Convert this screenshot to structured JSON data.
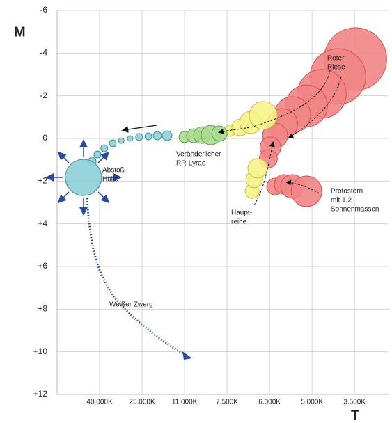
{
  "chart_data": {
    "type": "bubble",
    "y_label": "M",
    "x_label": "T",
    "xlim": [
      0,
      7.8
    ],
    "ylim": [
      -6,
      12
    ],
    "y_inverted": true,
    "grid": true,
    "xticks": [
      {
        "value": 1,
        "label": "40.000K"
      },
      {
        "value": 2,
        "label": "25.000K"
      },
      {
        "value": 3,
        "label": "11.000K"
      },
      {
        "value": 4,
        "label": "7.500K"
      },
      {
        "value": 5,
        "label": "6.000K"
      },
      {
        "value": 6,
        "label": "5.000K"
      },
      {
        "value": 7,
        "label": "3.500K"
      }
    ],
    "yticks": [
      -6,
      -4,
      -2,
      0,
      {
        "value": 2,
        "label": "+2"
      },
      {
        "value": 4,
        "label": "+4"
      },
      {
        "value": 6,
        "label": "+6"
      },
      {
        "value": 8,
        "label": "+8"
      },
      {
        "value": 10,
        "label": "+10"
      },
      {
        "value": 12,
        "label": "+12"
      }
    ],
    "series": [
      {
        "color": "#f08585",
        "stroke": "#d85050",
        "x": [
          7.02,
          6.61,
          6.23,
          5.87,
          5.54,
          5.3,
          5.13,
          5.02,
          4.97,
          5.13,
          5.34,
          5.54,
          5.87
        ],
        "y": [
          -3.72,
          -2.9,
          -2.09,
          -1.53,
          -1.11,
          -0.68,
          -0.13,
          0.42,
          0.95,
          2.25,
          2.15,
          2.25,
          2.48
        ],
        "sizes": [
          45,
          40,
          35,
          30,
          26,
          22,
          18,
          15,
          13,
          12,
          14,
          17,
          22
        ]
      },
      {
        "color": "#f5f38a",
        "stroke": "#c8c040",
        "x": [
          4.59,
          4.64,
          4.72,
          4.07,
          4.31,
          4.56,
          4.85
        ],
        "y": [
          2.48,
          1.92,
          1.4,
          -0.36,
          -0.52,
          -0.75,
          -1.08
        ],
        "sizes": [
          10,
          12,
          14,
          8,
          12,
          16,
          20
        ]
      },
      {
        "color": "#a9dc8c",
        "stroke": "#5aa050",
        "x": [
          3.0,
          3.21,
          3.41,
          3.62,
          3.82
        ],
        "y": [
          -0.07,
          -0.13,
          -0.16,
          -0.16,
          -0.23
        ],
        "sizes": [
          8,
          10,
          12,
          14,
          11
        ]
      },
      {
        "color": "#8ccfd8",
        "stroke": "#3f8fa0",
        "x": [
          2.59,
          2.36,
          2.15,
          1.93,
          1.72,
          1.51,
          1.31,
          1.11,
          0.95,
          0.82,
          0.62
        ],
        "y": [
          -0.13,
          -0.13,
          -0.1,
          -0.07,
          0,
          0.1,
          0.23,
          0.46,
          0.75,
          1.08,
          1.83
        ],
        "sizes": [
          7,
          6,
          5,
          5,
          4,
          4,
          5,
          5,
          5,
          6,
          26
        ]
      }
    ],
    "annotations": [
      {
        "lines": [
          "Roter",
          "Riese"
        ]
      },
      {
        "lines": [
          "Veränderlicher",
          "RR-Lyrae"
        ]
      },
      {
        "lines": [
          "Abstoß",
          "Hülle"
        ]
      },
      {
        "lines": [
          "Protostern",
          "mit 1,2",
          "Sonnenmassen"
        ]
      },
      {
        "lines": [
          "Haupt-",
          "reihe"
        ]
      },
      {
        "lines": [
          "Weißer Zwerg"
        ]
      }
    ]
  }
}
